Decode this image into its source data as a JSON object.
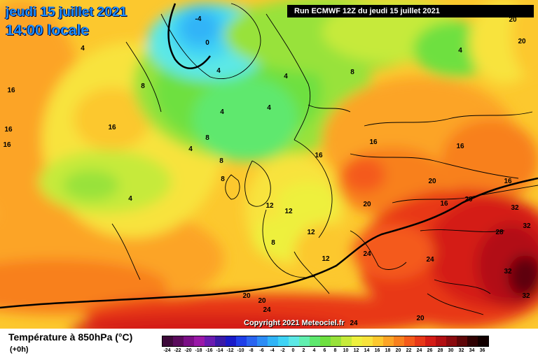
{
  "header": {
    "date": "jeudi 15 juillet 2021",
    "time": "14:00 locale",
    "run": "Run ECMWF 12Z du jeudi 15 juillet 2021"
  },
  "copyright": "Copyright 2021 Meteociel.fr",
  "legend": {
    "title": "Température à 850hPa (°C)",
    "subtitle": "(+0h)",
    "ticks": [
      "-24",
      "-22",
      "-20",
      "-18",
      "-16",
      "-14",
      "-12",
      "-10",
      "-8",
      "-6",
      "-4",
      "-2",
      "0",
      "2",
      "4",
      "6",
      "8",
      "10",
      "12",
      "14",
      "16",
      "18",
      "20",
      "22",
      "24",
      "26",
      "28",
      "30",
      "32",
      "34",
      "36"
    ],
    "colors": [
      "#3d0a3a",
      "#5a0b5c",
      "#7b0f86",
      "#9a18a8",
      "#6a1bb0",
      "#3a1aa8",
      "#1a1ac8",
      "#1f3ee8",
      "#2a64f0",
      "#2d8cf5",
      "#31b4f7",
      "#3fd3f5",
      "#5ce8e6",
      "#62f0b0",
      "#5ee86e",
      "#6ee040",
      "#98e23a",
      "#c6ea3a",
      "#eef03e",
      "#f8e33c",
      "#fcc82e",
      "#fca426",
      "#f8801e",
      "#f45a1a",
      "#e83818",
      "#d41c16",
      "#b20f12",
      "#8a0a0e",
      "#5e0608",
      "#300203",
      "#120000"
    ]
  },
  "contour_labels": [
    {
      "t": "-4",
      "c": "#000"
    },
    {
      "t": "0",
      "c": "#000"
    },
    {
      "t": "4",
      "c": "#000"
    },
    {
      "t": "16",
      "c": "#000"
    },
    {
      "t": "4",
      "c": "#000"
    },
    {
      "t": "8",
      "c": "#000"
    },
    {
      "t": "4",
      "c": "#000"
    },
    {
      "t": "8",
      "c": "#000"
    },
    {
      "t": "4",
      "c": "#000"
    },
    {
      "t": "16",
      "c": "#000"
    },
    {
      "t": "4",
      "c": "#000"
    },
    {
      "t": "16",
      "c": "#000"
    },
    {
      "t": "16",
      "c": "#000"
    },
    {
      "t": "8",
      "c": "#000"
    },
    {
      "t": "16",
      "c": "#000"
    },
    {
      "t": "4",
      "c": "#000"
    },
    {
      "t": "8",
      "c": "#000"
    },
    {
      "t": "4",
      "c": "#000"
    },
    {
      "t": "16",
      "c": "#000"
    },
    {
      "t": "16",
      "c": "#000"
    },
    {
      "t": "20",
      "c": "#fff"
    },
    {
      "t": "20",
      "c": "#fff"
    },
    {
      "t": "20",
      "c": "#fff"
    },
    {
      "t": "20",
      "c": "#000"
    },
    {
      "t": "4",
      "c": "#000"
    },
    {
      "t": "12",
      "c": "#fff"
    },
    {
      "t": "12",
      "c": "#fff"
    },
    {
      "t": "12",
      "c": "#fff"
    },
    {
      "t": "12",
      "c": "#fff"
    },
    {
      "t": "8",
      "c": "#fff"
    },
    {
      "t": "16",
      "c": "#fff"
    },
    {
      "t": "16",
      "c": "#fff"
    },
    {
      "t": "20",
      "c": "#000"
    },
    {
      "t": "32",
      "c": "#fff"
    },
    {
      "t": "32",
      "c": "#fff"
    },
    {
      "t": "28",
      "c": "#fff"
    },
    {
      "t": "24",
      "c": "#fff"
    },
    {
      "t": "24",
      "c": "#fff"
    },
    {
      "t": "32",
      "c": "#fff"
    },
    {
      "t": "32",
      "c": "#fff"
    },
    {
      "t": "20",
      "c": "#fff"
    },
    {
      "t": "20",
      "c": "#fff"
    },
    {
      "t": "24",
      "c": "#fff"
    },
    {
      "t": "24",
      "c": "#fff"
    },
    {
      "t": "20",
      "c": "#fff"
    },
    {
      "t": "8",
      "c": "#000"
    }
  ]
}
